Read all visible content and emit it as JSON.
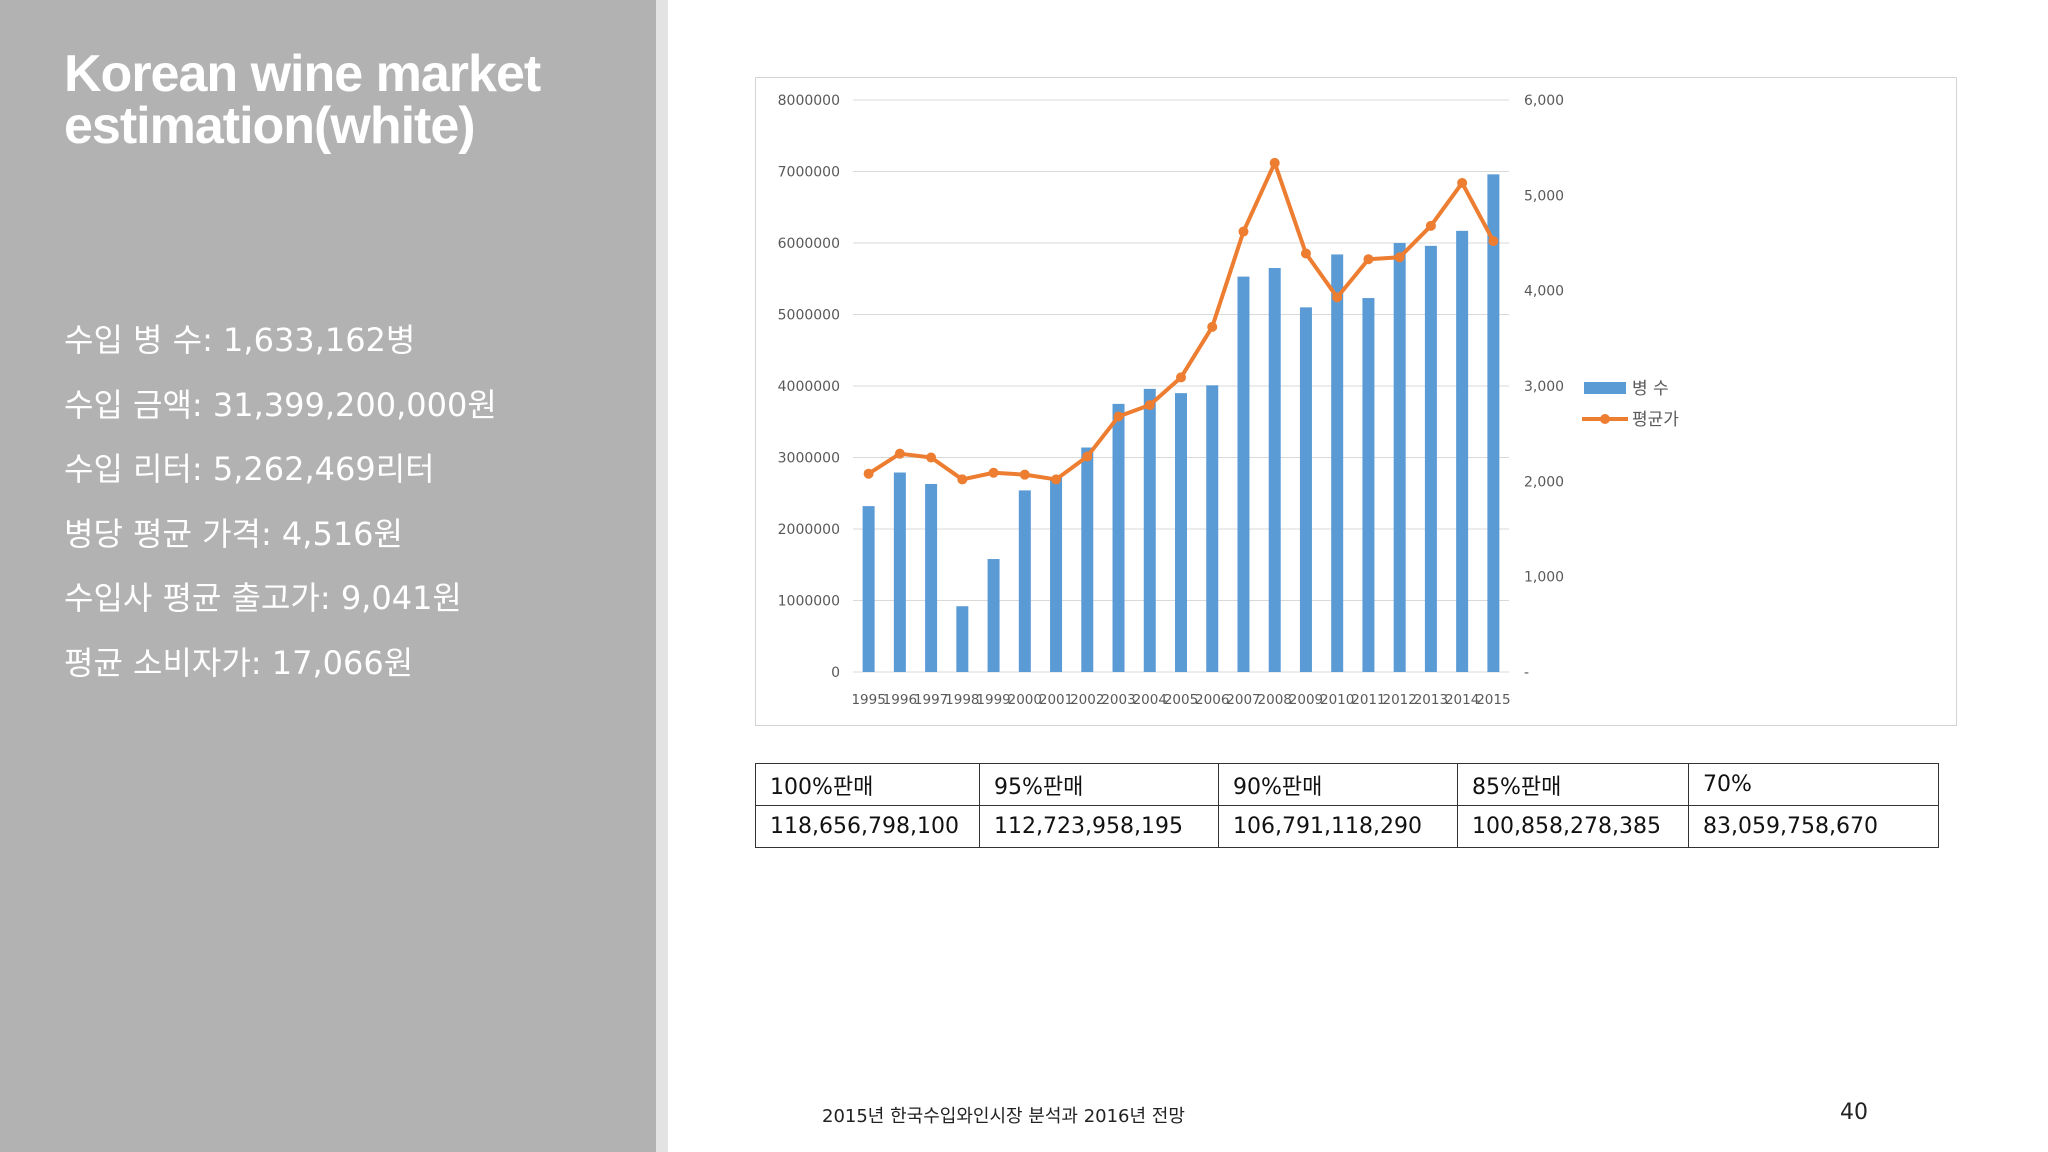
{
  "slide": {
    "title_lines": [
      "Korean wine market",
      "estimation(white)"
    ],
    "stats": [
      "수입 병 수: 1,633,162병",
      "수입 금액: 31,399,200,000원",
      "수입 리터: 5,262,469리터",
      "병당 평균 가격: 4,516원",
      "수입사 평균 출고가: 9,041원",
      "평균 소비자가: 17,066원"
    ],
    "footer": "2015년 한국수입와인시장 분석과 2016년 전망",
    "page_number": "40"
  },
  "table": {
    "headers": [
      "100%판매",
      "95%판매",
      "90%판매",
      "85%판매",
      "70%"
    ],
    "values": [
      "118,656,798,100",
      "112,723,958,195",
      "106,791,118,290",
      "100,858,278,385",
      "83,059,758,670"
    ]
  },
  "chart_data": {
    "type": "bar",
    "combo": "bar + line (secondary axis)",
    "title": "",
    "xlabel": "",
    "ylabel": "",
    "categories": [
      "1995",
      "1996",
      "1997",
      "1998",
      "1999",
      "2000",
      "2001",
      "2002",
      "2003",
      "2004",
      "2005",
      "2006",
      "2007",
      "2008",
      "2009",
      "2010",
      "2011",
      "2012",
      "2013",
      "2014",
      "2015"
    ],
    "series": [
      {
        "name": "병 수",
        "type": "bar",
        "axis": "primary",
        "color": "#5b9bd5",
        "values": [
          2320000,
          2790000,
          2630000,
          920000,
          1580000,
          2540000,
          2720000,
          3140000,
          3750000,
          3960000,
          3900000,
          4010000,
          5530000,
          5650000,
          5100000,
          5840000,
          5230000,
          6000000,
          5960000,
          6170000,
          6960000
        ]
      },
      {
        "name": "평균가",
        "type": "line",
        "axis": "secondary",
        "color": "#ed7d31",
        "values": [
          2080,
          2290,
          2250,
          2020,
          2090,
          2070,
          2020,
          2260,
          2680,
          2800,
          3090,
          3620,
          4620,
          5340,
          4390,
          3930,
          4330,
          4350,
          4680,
          5130,
          4520
        ]
      }
    ],
    "y_primary": {
      "range": [
        0,
        8000000
      ],
      "ticks": [
        "0",
        "1000000",
        "2000000",
        "3000000",
        "4000000",
        "5000000",
        "6000000",
        "7000000",
        "8000000"
      ]
    },
    "y_secondary": {
      "range": [
        0,
        6000
      ],
      "ticks": [
        "-",
        "1,000",
        "2,000",
        "3,000",
        "4,000",
        "5,000",
        "6,000"
      ]
    },
    "grid": true,
    "legend_position": "right"
  }
}
